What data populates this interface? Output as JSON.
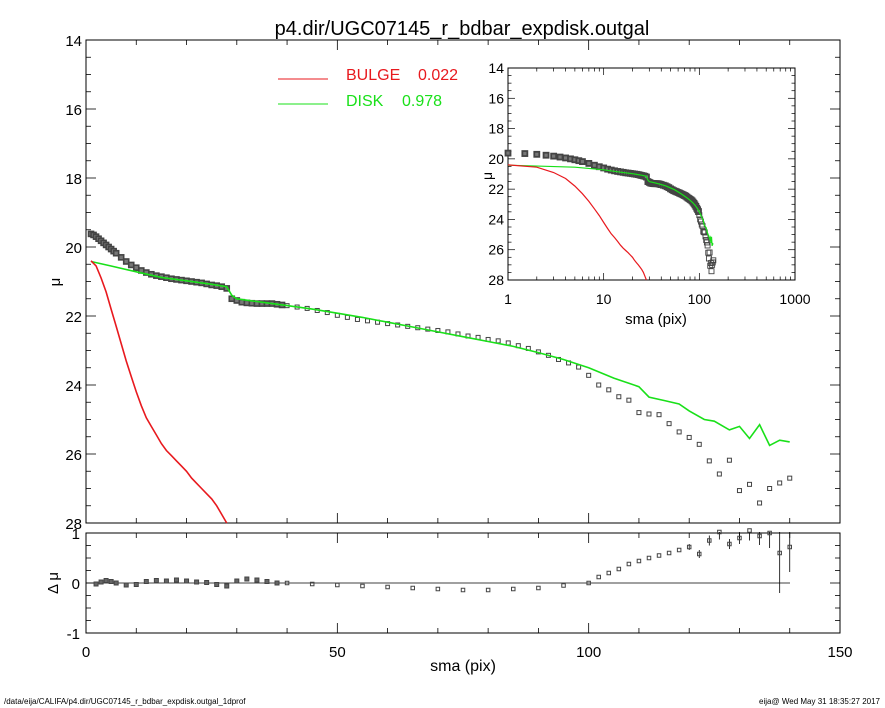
{
  "title": "p4.dir/UGC07145_r_bdbar_expdisk.outgal",
  "footer_left": "/data/eija/CALIFA/p4.dir/UGC07145_r_bdbar_expdisk.outgal_1dprof",
  "footer_right": "eija@  Wed May 31 18:35:27 2017",
  "colors": {
    "bulge": "#e8191e",
    "disk": "#19e019",
    "data": "#555555"
  },
  "chart_data": [
    {
      "type": "scatter",
      "title": "p4.dir/UGC07145_r_bdbar_expdisk.outgal",
      "xlabel": "",
      "ylabel": "μ",
      "xlim": [
        0,
        150
      ],
      "ylim": [
        28,
        14
      ],
      "x_ticks": [
        0,
        50,
        100,
        150
      ],
      "y_ticks": [
        14,
        16,
        18,
        20,
        22,
        24,
        26,
        28
      ],
      "legend": [
        {
          "name": "BULGE",
          "value": "0.022",
          "color": "#e8191e"
        },
        {
          "name": "DISK",
          "value": "0.978",
          "color": "#19e019"
        }
      ],
      "data_points": {
        "x": [
          1.0,
          1.5,
          2,
          2.5,
          3,
          3.5,
          4,
          4.5,
          5,
          5.5,
          6,
          7,
          8,
          9,
          10,
          11,
          12,
          13,
          14,
          15,
          16,
          17,
          18,
          19,
          20,
          21,
          22,
          23,
          24,
          25,
          26,
          27,
          28,
          29,
          30,
          31,
          32,
          33,
          34,
          35,
          36,
          37,
          38,
          39,
          40,
          42,
          44,
          46,
          48,
          50,
          52,
          54,
          56,
          58,
          60,
          62,
          64,
          66,
          68,
          70,
          72,
          74,
          76,
          78,
          80,
          82,
          84,
          86,
          88,
          90,
          92,
          94,
          96,
          98,
          100,
          102,
          104,
          106,
          108,
          110,
          112,
          114,
          116,
          118,
          120,
          122,
          124,
          126,
          128,
          130,
          132,
          134,
          136,
          138,
          140
        ],
        "y": [
          19.62,
          19.65,
          19.7,
          19.76,
          19.82,
          19.88,
          19.94,
          20.0,
          20.06,
          20.12,
          20.18,
          20.3,
          20.42,
          20.52,
          20.6,
          20.68,
          20.74,
          20.79,
          20.83,
          20.86,
          20.89,
          20.92,
          20.94,
          20.96,
          20.98,
          21.0,
          21.02,
          21.04,
          21.07,
          21.1,
          21.12,
          21.15,
          21.2,
          21.5,
          21.55,
          21.6,
          21.62,
          21.63,
          21.64,
          21.64,
          21.64,
          21.64,
          21.66,
          21.68,
          21.7,
          21.74,
          21.78,
          21.84,
          21.9,
          21.98,
          22.04,
          22.1,
          22.14,
          22.18,
          22.22,
          22.26,
          22.3,
          22.34,
          22.38,
          22.42,
          22.46,
          22.52,
          22.58,
          22.62,
          22.68,
          22.72,
          22.78,
          22.86,
          22.94,
          23.04,
          23.14,
          23.26,
          23.36,
          23.48,
          23.72,
          24.0,
          24.14,
          24.34,
          24.44,
          24.8,
          24.84,
          24.86,
          25.12,
          25.36,
          25.52,
          25.72,
          26.2,
          26.58,
          26.18,
          27.06,
          26.88,
          27.42,
          27.0,
          26.84,
          26.7
        ]
      },
      "bulge_model": {
        "name": "BULGE",
        "x": [
          1,
          2,
          3,
          4,
          5,
          6,
          7,
          8,
          9,
          10,
          11,
          12,
          13,
          14,
          15,
          16,
          17,
          18,
          19,
          20,
          21,
          22,
          23,
          24,
          25,
          26,
          27,
          28
        ],
        "y": [
          20.4,
          20.55,
          20.9,
          21.3,
          21.8,
          22.3,
          22.8,
          23.3,
          23.75,
          24.2,
          24.6,
          24.95,
          25.2,
          25.45,
          25.7,
          25.9,
          26.05,
          26.2,
          26.35,
          26.5,
          26.7,
          26.85,
          27.0,
          27.15,
          27.3,
          27.5,
          27.75,
          28.0
        ]
      },
      "disk_model": {
        "name": "DISK",
        "x": [
          1,
          5,
          10,
          15,
          20,
          25,
          28,
          29,
          30,
          35,
          40,
          45,
          50,
          55,
          60,
          65,
          70,
          75,
          80,
          85,
          90,
          95,
          100,
          105,
          108,
          110,
          112,
          115,
          118,
          120,
          123,
          125,
          128,
          130,
          132,
          134,
          136,
          138,
          140
        ],
        "y": [
          20.42,
          20.55,
          20.72,
          20.88,
          20.98,
          21.08,
          21.15,
          21.4,
          21.5,
          21.6,
          21.7,
          21.8,
          21.92,
          22.04,
          22.18,
          22.32,
          22.46,
          22.6,
          22.74,
          22.88,
          23.06,
          23.26,
          23.5,
          23.8,
          23.95,
          24.05,
          24.35,
          24.45,
          24.55,
          24.75,
          25.0,
          25.05,
          25.3,
          25.2,
          25.55,
          25.15,
          25.75,
          25.6,
          25.65
        ]
      }
    },
    {
      "type": "scatter",
      "xlabel": "sma (pix)",
      "ylabel": "Δ μ",
      "xlim": [
        0,
        150
      ],
      "ylim": [
        -1,
        1
      ],
      "x_ticks": [
        0,
        50,
        100,
        150
      ],
      "y_ticks": [
        -1,
        0,
        1
      ],
      "residuals": {
        "x": [
          2,
          3,
          4,
          5,
          6,
          8,
          10,
          12,
          14,
          16,
          18,
          20,
          22,
          24,
          26,
          28,
          30,
          32,
          34,
          36,
          38,
          40,
          45,
          50,
          55,
          60,
          65,
          70,
          75,
          80,
          85,
          90,
          95,
          100,
          102,
          104,
          106,
          108,
          110,
          112,
          114,
          116,
          118,
          120,
          122,
          124,
          126,
          128,
          130,
          132,
          134,
          136,
          138,
          140
        ],
        "y": [
          -0.02,
          0.02,
          0.05,
          0.03,
          0.0,
          -0.04,
          -0.03,
          0.03,
          0.05,
          0.04,
          0.06,
          0.04,
          0.02,
          0.01,
          -0.03,
          -0.06,
          0.04,
          0.08,
          0.06,
          0.03,
          0.0,
          0.0,
          -0.02,
          -0.04,
          -0.06,
          -0.08,
          -0.1,
          -0.12,
          -0.14,
          -0.14,
          -0.12,
          -0.1,
          -0.05,
          0.0,
          0.12,
          0.2,
          0.28,
          0.38,
          0.44,
          0.5,
          0.55,
          0.6,
          0.66,
          0.72,
          0.58,
          0.85,
          1.02,
          0.78,
          0.9,
          1.05,
          0.94,
          1.0,
          0.6,
          0.72
        ],
        "errors": [
          0,
          0,
          0,
          0,
          0,
          0,
          0,
          0,
          0,
          0,
          0,
          0,
          0,
          0,
          0,
          0,
          0,
          0,
          0,
          0,
          0,
          0,
          0,
          0,
          0,
          0,
          0,
          0,
          0,
          0,
          0,
          0,
          0,
          0,
          0,
          0,
          0,
          0,
          0,
          0,
          0,
          0,
          0,
          0.06,
          0.08,
          0.1,
          0.15,
          0.1,
          0.12,
          0.2,
          0.18,
          0.3,
          0.8,
          0.5
        ]
      }
    },
    {
      "type": "scatter",
      "xlabel": "sma (pix)",
      "ylabel": "μ",
      "xscale": "log",
      "xlim": [
        1,
        1000
      ],
      "ylim": [
        28,
        14
      ],
      "x_ticks": [
        1,
        10,
        100,
        1000
      ],
      "y_ticks": [
        14,
        16,
        18,
        20,
        22,
        24,
        26,
        28
      ]
    }
  ]
}
